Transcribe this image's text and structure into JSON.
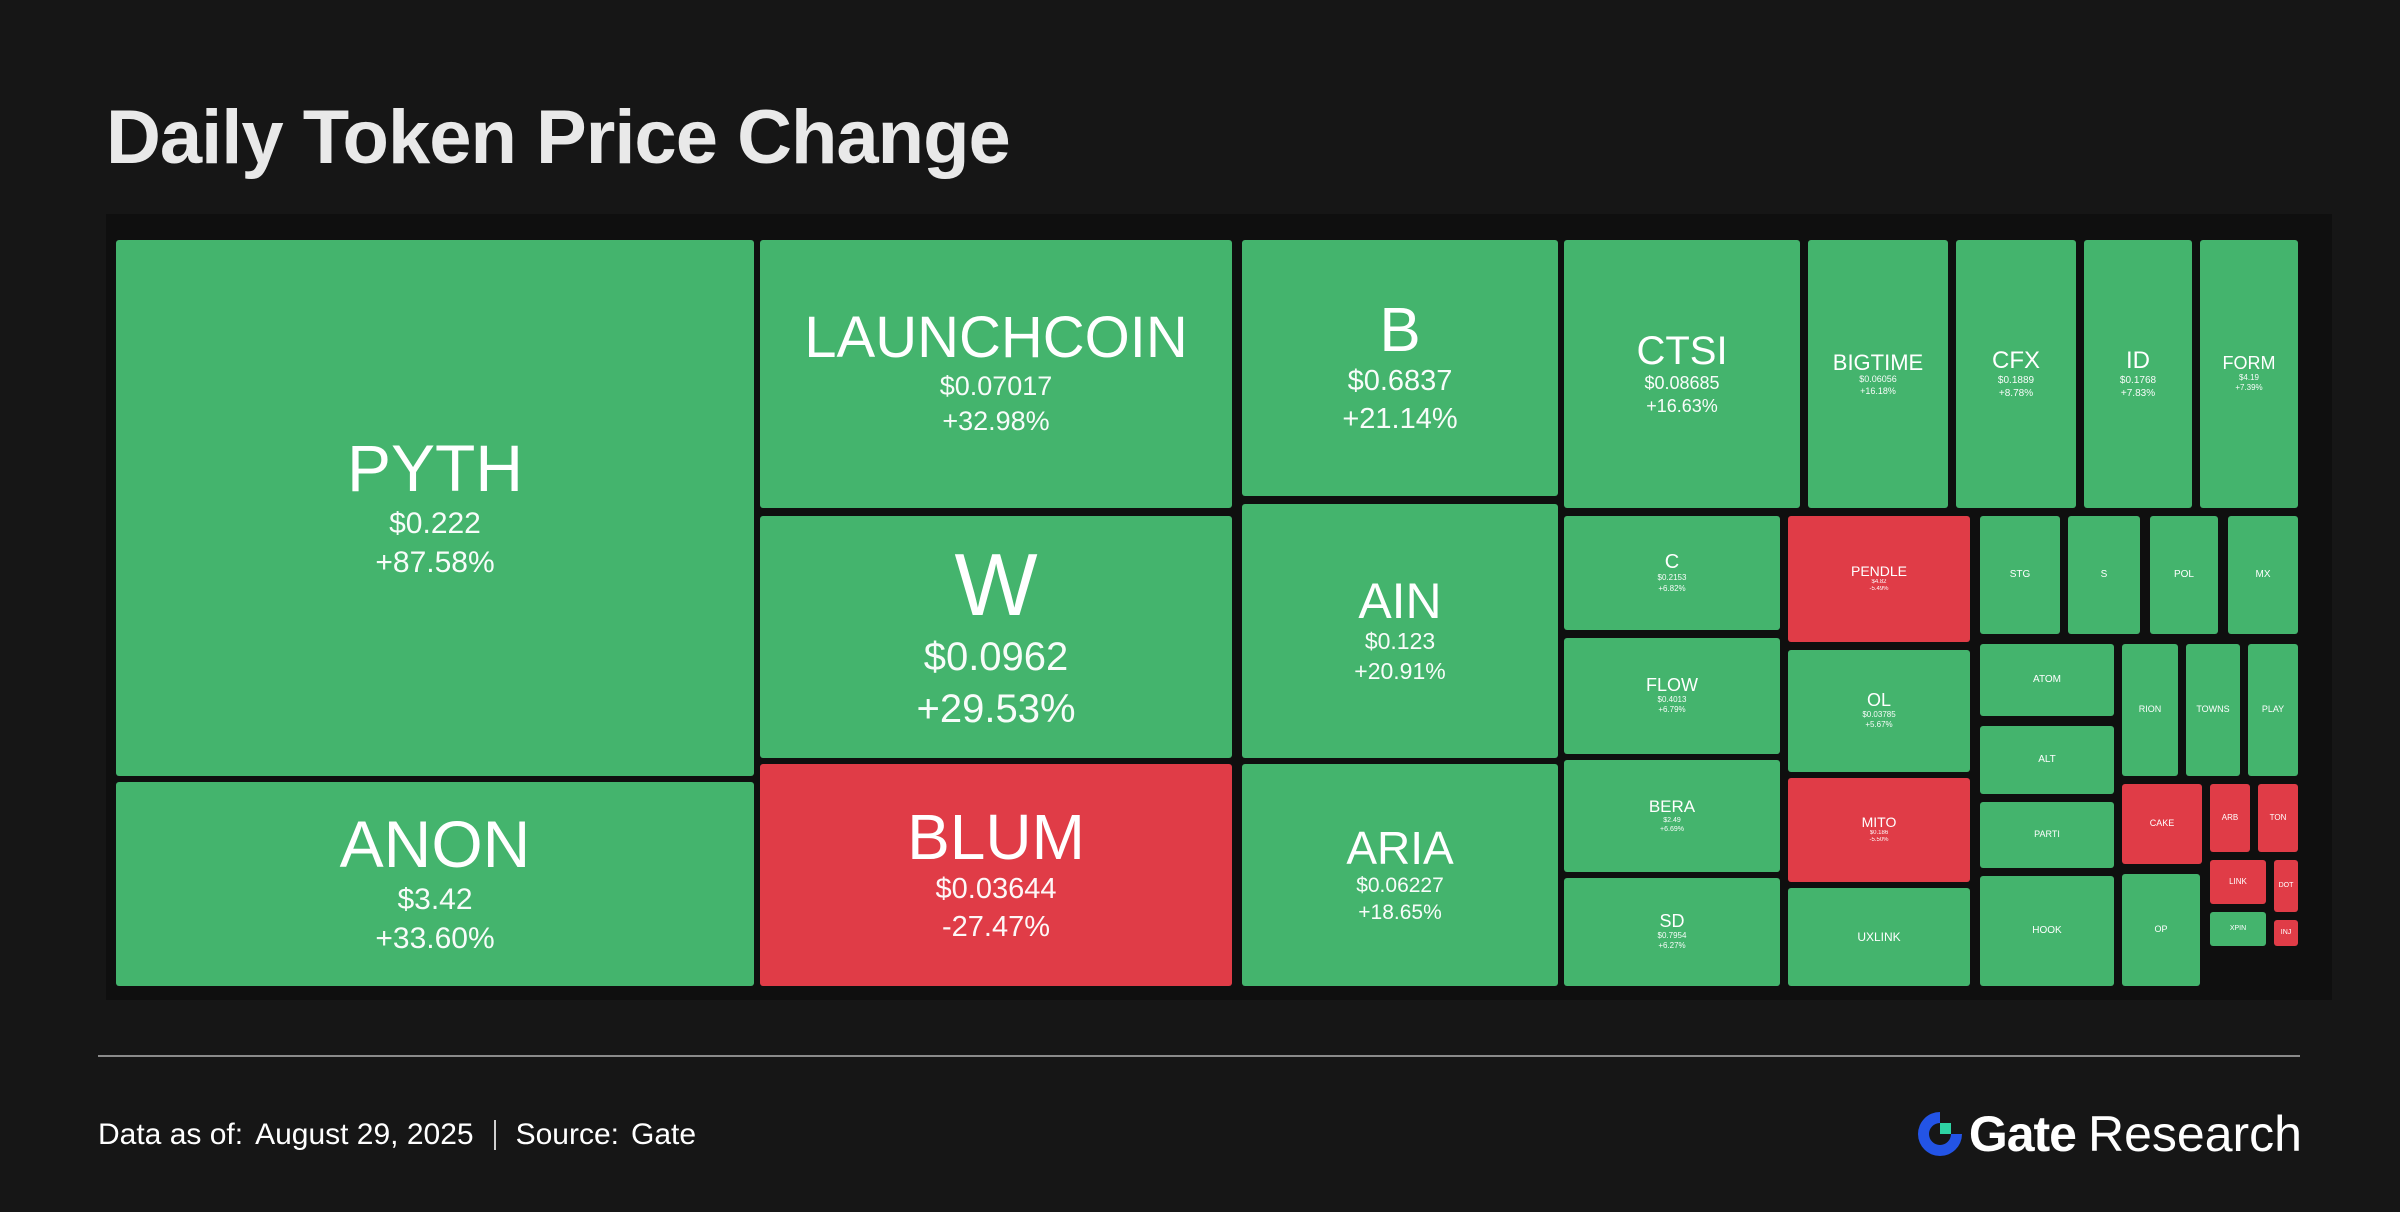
{
  "title": "Daily Token Price Change",
  "footer": {
    "date_label": "Data as of:",
    "date_value": "August  29, 2025",
    "source_label": "Source:",
    "source_value": "Gate"
  },
  "brand": {
    "name": "Gate",
    "suffix": "Research",
    "logo_icon": "gate-logo-icon"
  },
  "colors": {
    "up": "#44b46d",
    "down": "#e03c47",
    "background": "#161616"
  },
  "chart_data": {
    "type": "treemap",
    "title": "Daily Token Price Change",
    "items": [
      {
        "symbol": "PYTH",
        "price": "$0.222",
        "change": "+87.58%",
        "change_pct": 87.58
      },
      {
        "symbol": "ANON",
        "price": "$3.42",
        "change": "+33.60%",
        "change_pct": 33.6
      },
      {
        "symbol": "LAUNCHCOIN",
        "price": "$0.07017",
        "change": "+32.98%",
        "change_pct": 32.98
      },
      {
        "symbol": "W",
        "price": "$0.0962",
        "change": "+29.53%",
        "change_pct": 29.53
      },
      {
        "symbol": "BLUM",
        "price": "$0.03644",
        "change": "-27.47%",
        "change_pct": -27.47
      },
      {
        "symbol": "B",
        "price": "$0.6837",
        "change": "+21.14%",
        "change_pct": 21.14
      },
      {
        "symbol": "AIN",
        "price": "$0.123",
        "change": "+20.91%",
        "change_pct": 20.91
      },
      {
        "symbol": "ARIA",
        "price": "$0.06227",
        "change": "+18.65%",
        "change_pct": 18.65
      },
      {
        "symbol": "CTSI",
        "price": "$0.08685",
        "change": "+16.63%",
        "change_pct": 16.63
      },
      {
        "symbol": "BIGTIME",
        "price": "$0.06056",
        "change": "+16.18%",
        "change_pct": 16.18
      },
      {
        "symbol": "CFX",
        "price": "$0.1889",
        "change": "+8.78%",
        "change_pct": 8.78
      },
      {
        "symbol": "ID",
        "price": "$0.1768",
        "change": "+7.83%",
        "change_pct": 7.83
      },
      {
        "symbol": "FORM",
        "price": "$4.19",
        "change": "+7.39%",
        "change_pct": 7.39
      },
      {
        "symbol": "C",
        "price": "$0.2153",
        "change": "+6.82%",
        "change_pct": 6.82
      },
      {
        "symbol": "FLOW",
        "price": "$0.4013",
        "change": "+6.79%",
        "change_pct": 6.79
      },
      {
        "symbol": "BERA",
        "price": "$2.49",
        "change": "+6.69%",
        "change_pct": 6.69
      },
      {
        "symbol": "SD",
        "price": "$0.7954",
        "change": "+6.27%",
        "change_pct": 6.27
      },
      {
        "symbol": "PENDLE",
        "price": "$4.82",
        "change": "-5.49%",
        "change_pct": -5.49
      },
      {
        "symbol": "OL",
        "price": "$0.03785",
        "change": "+5.67%",
        "change_pct": 5.67
      },
      {
        "symbol": "MITO",
        "price": "$0.186",
        "change": "-5.50%",
        "change_pct": -5.5
      },
      {
        "symbol": "UXLINK",
        "price": "",
        "change": "",
        "change_pct": null
      },
      {
        "symbol": "STG",
        "price": "",
        "change": "",
        "change_pct": null
      },
      {
        "symbol": "S",
        "price": "",
        "change": "",
        "change_pct": null
      },
      {
        "symbol": "POL",
        "price": "",
        "change": "",
        "change_pct": null
      },
      {
        "symbol": "MX",
        "price": "",
        "change": "",
        "change_pct": null
      },
      {
        "symbol": "ATOM",
        "price": "",
        "change": "",
        "change_pct": null
      },
      {
        "symbol": "RION",
        "price": "",
        "change": "",
        "change_pct": null
      },
      {
        "symbol": "TOWNS",
        "price": "",
        "change": "",
        "change_pct": null
      },
      {
        "symbol": "PLAY",
        "price": "",
        "change": "",
        "change_pct": null
      },
      {
        "symbol": "ALT",
        "price": "",
        "change": "",
        "change_pct": null
      },
      {
        "symbol": "CAKE",
        "price": "",
        "change": "",
        "change_pct": null
      },
      {
        "symbol": "ARB",
        "price": "",
        "change": "",
        "change_pct": null
      },
      {
        "symbol": "TON",
        "price": "",
        "change": "",
        "change_pct": null
      },
      {
        "symbol": "PARTI",
        "price": "",
        "change": "",
        "change_pct": null
      },
      {
        "symbol": "LINK",
        "price": "",
        "change": "",
        "change_pct": null
      },
      {
        "symbol": "DOT",
        "price": "",
        "change": "",
        "change_pct": null
      },
      {
        "symbol": "HOOK",
        "price": "",
        "change": "",
        "change_pct": null
      },
      {
        "symbol": "OP",
        "price": "",
        "change": "",
        "change_pct": null
      },
      {
        "symbol": "XPIN",
        "price": "",
        "change": "",
        "change_pct": null
      },
      {
        "symbol": "INJ",
        "price": "",
        "change": "",
        "change_pct": null
      }
    ],
    "down_symbols": [
      "BLUM",
      "PENDLE",
      "MITO",
      "CAKE",
      "ARB",
      "TON",
      "LINK",
      "DOT",
      "INJ"
    ]
  }
}
